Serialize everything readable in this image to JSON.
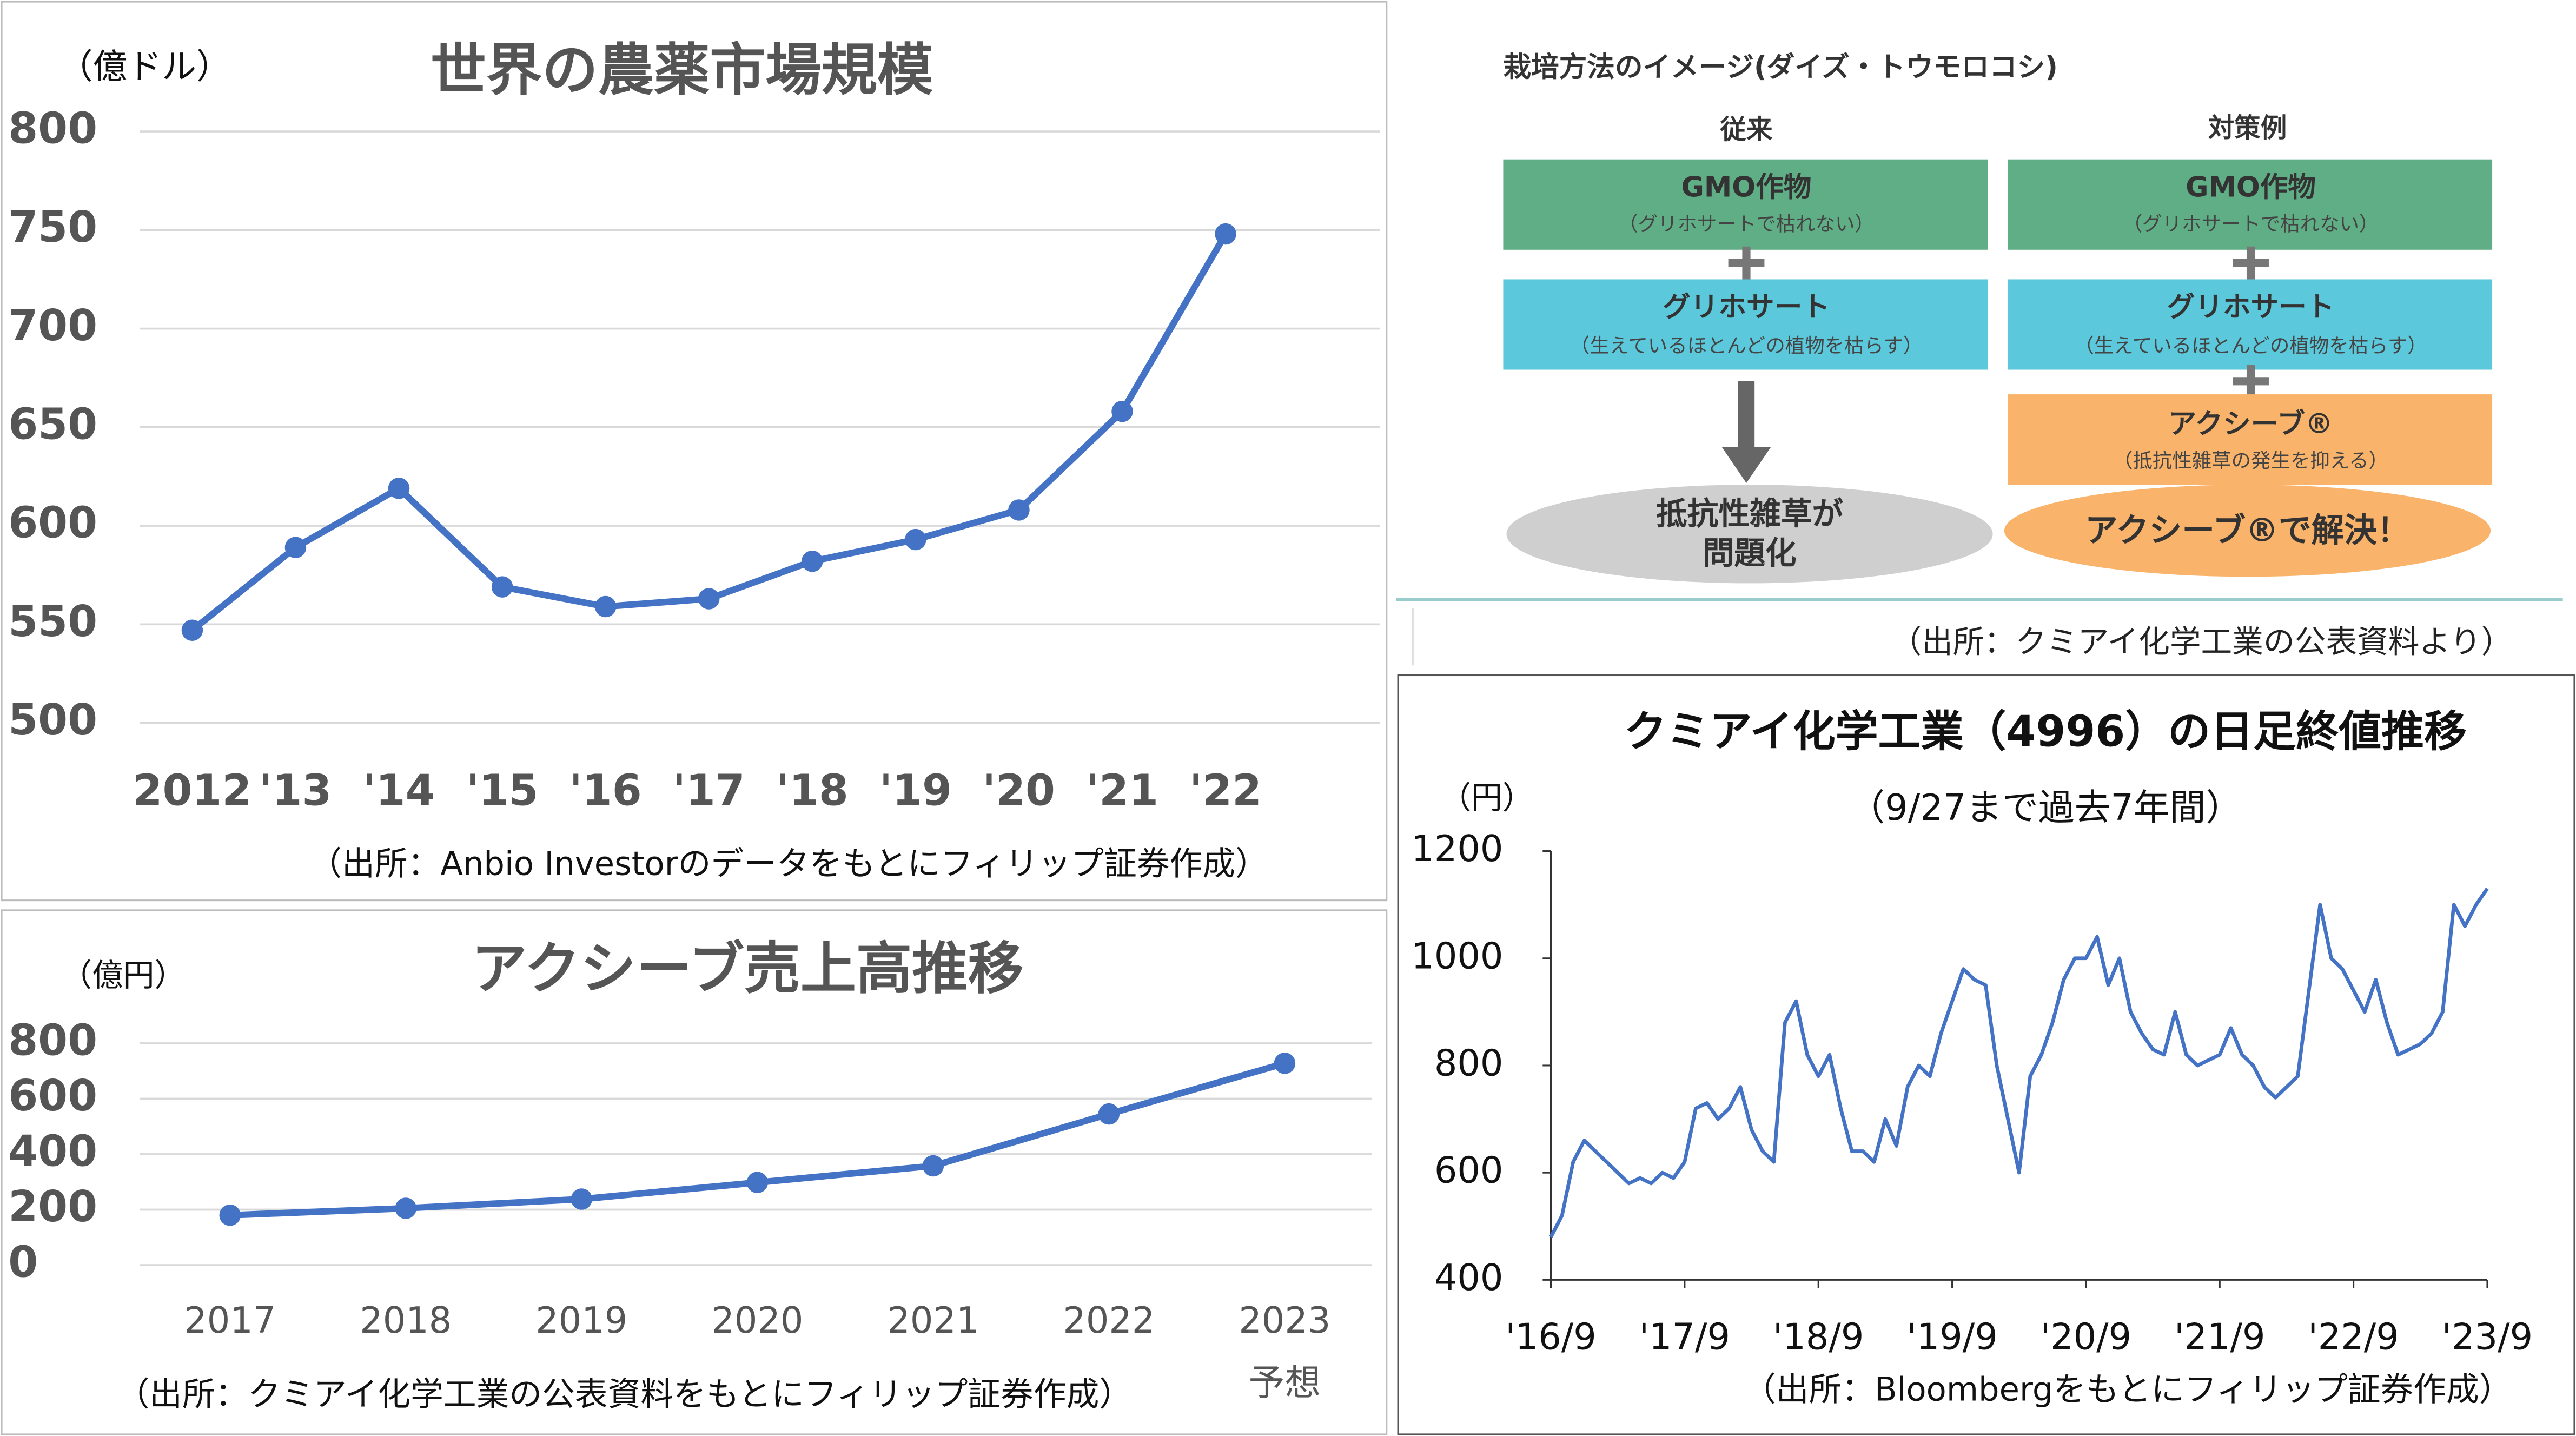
{
  "chart_data": [
    {
      "type": "line",
      "title": "世界の農薬市場規模",
      "unit_label": "（億ドル）",
      "categories": [
        "2012",
        "'13",
        "'14",
        "'15",
        "'16",
        "'17",
        "'18",
        "'19",
        "'20",
        "'21",
        "'22"
      ],
      "values": [
        547,
        589,
        619,
        569,
        559,
        563,
        582,
        593,
        608,
        658,
        748
      ],
      "color": "#4472c4",
      "markers": true,
      "grid": true,
      "ylim": [
        500,
        800
      ],
      "yticks": [
        500,
        550,
        600,
        650,
        700,
        750,
        800
      ],
      "source": "（出所：Anbio Investorのデータをもとにフィリップ証券作成）"
    },
    {
      "type": "line",
      "title": "アクシーブ売上高推移",
      "unit_label": "（億円）",
      "categories": [
        "2017",
        "2018",
        "2019",
        "2020",
        "2021",
        "2022",
        "2023"
      ],
      "category_note": "予想",
      "values": [
        180,
        205,
        238,
        298,
        358,
        545,
        728
      ],
      "color": "#4472c4",
      "markers": true,
      "grid": true,
      "ylim": [
        0,
        800
      ],
      "yticks": [
        0,
        200,
        400,
        600,
        800
      ],
      "source": "（出所：クミアイ化学工業の公表資料をもとにフィリップ証券作成）"
    },
    {
      "type": "line",
      "title": "クミアイ化学工業（4996）の日足終値推移",
      "subtitle": "（9/27まで過去7年間）",
      "unit_label": "（円）",
      "x": [
        "2016-09",
        "2016-10",
        "2016-11",
        "2016-12",
        "2017-01",
        "2017-02",
        "2017-03",
        "2017-04",
        "2017-05",
        "2017-06",
        "2017-07",
        "2017-08",
        "2017-09",
        "2017-10",
        "2017-11",
        "2017-12",
        "2018-01",
        "2018-02",
        "2018-03",
        "2018-04",
        "2018-05",
        "2018-06",
        "2018-07",
        "2018-08",
        "2018-09",
        "2018-10",
        "2018-11",
        "2018-12",
        "2019-01",
        "2019-02",
        "2019-03",
        "2019-04",
        "2019-05",
        "2019-06",
        "2019-07",
        "2019-08",
        "2019-09",
        "2019-10",
        "2019-11",
        "2019-12",
        "2020-01",
        "2020-02",
        "2020-03",
        "2020-04",
        "2020-05",
        "2020-06",
        "2020-07",
        "2020-08",
        "2020-09",
        "2020-10",
        "2020-11",
        "2020-12",
        "2021-01",
        "2021-02",
        "2021-03",
        "2021-04",
        "2021-05",
        "2021-06",
        "2021-07",
        "2021-08",
        "2021-09",
        "2021-10",
        "2021-11",
        "2021-12",
        "2022-01",
        "2022-02",
        "2022-03",
        "2022-04",
        "2022-05",
        "2022-06",
        "2022-07",
        "2022-08",
        "2022-09",
        "2022-10",
        "2022-11",
        "2022-12",
        "2023-01",
        "2023-02",
        "2023-03",
        "2023-04",
        "2023-05",
        "2023-06",
        "2023-07",
        "2023-08",
        "2023-09"
      ],
      "values": [
        480,
        520,
        620,
        660,
        640,
        620,
        600,
        580,
        590,
        580,
        600,
        590,
        620,
        720,
        730,
        700,
        720,
        760,
        680,
        640,
        620,
        880,
        920,
        820,
        780,
        820,
        720,
        640,
        640,
        620,
        700,
        650,
        760,
        800,
        780,
        860,
        920,
        980,
        960,
        950,
        800,
        700,
        600,
        780,
        820,
        880,
        960,
        1000,
        1000,
        1040,
        950,
        1000,
        900,
        860,
        830,
        820,
        900,
        820,
        800,
        810,
        820,
        870,
        820,
        800,
        760,
        740,
        760,
        780,
        940,
        1100,
        1000,
        980,
        940,
        900,
        960,
        880,
        820,
        830,
        840,
        860,
        900,
        1100,
        1060,
        1100,
        1130
      ],
      "color": "#4472c4",
      "markers": false,
      "grid": false,
      "xlim": [
        "2016-09",
        "2023-09"
      ],
      "xticks": [
        {
          "value": "2016-09",
          "label": "'16/9"
        },
        {
          "value": "2017-09",
          "label": "'17/9"
        },
        {
          "value": "2018-09",
          "label": "'18/9"
        },
        {
          "value": "2019-09",
          "label": "'19/9"
        },
        {
          "value": "2020-09",
          "label": "'20/9"
        },
        {
          "value": "2021-09",
          "label": "'21/9"
        },
        {
          "value": "2022-09",
          "label": "'22/9"
        },
        {
          "value": "2023-09",
          "label": "'23/9"
        }
      ],
      "ylim": [
        400,
        1200
      ],
      "yticks": [
        400,
        600,
        800,
        1000,
        1200
      ],
      "source": "（出所：Bloombergをもとにフィリップ証券作成）"
    }
  ],
  "diagram": {
    "title": "栽培方法のイメージ(ダイズ・トウモロコシ)",
    "columns": [
      {
        "heading": "従来",
        "steps": [
          {
            "label": "GMO作物",
            "note": "（グリホサートで枯れない）"
          },
          {
            "label": "グリホサート",
            "note": "（生えているほとんどの植物を枯らす）"
          }
        ],
        "result": [
          "抵抗性雑草が",
          "問題化"
        ]
      },
      {
        "heading": "対策例",
        "steps": [
          {
            "label": "GMO作物",
            "note": "（グリホサートで枯れない）"
          },
          {
            "label": "グリホサート",
            "note": "（生えているほとんどの植物を枯らす）"
          },
          {
            "label": "アクシーブ®",
            "note": "（抵抗性雑草の発生を抑える）"
          }
        ],
        "result": [
          "アクシーブ®で解決！"
        ]
      }
    ],
    "source": "（出所：クミアイ化学工業の公表資料より）"
  }
}
